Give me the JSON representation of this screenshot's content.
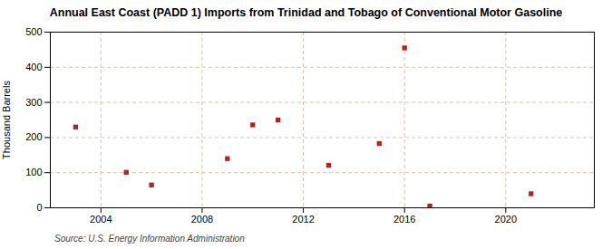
{
  "chart_data": {
    "type": "scatter",
    "title": "Annual East Coast (PADD 1) Imports from Trinidad and Tobago of Conventional Motor Gasoline",
    "ylabel": "Thousand Barrels",
    "source": "Source: U.S. Energy Information Administration",
    "x": [
      2003,
      2005,
      2006,
      2009,
      2010,
      2011,
      2013,
      2015,
      2016,
      2017,
      2021
    ],
    "values": [
      230,
      101,
      65,
      140,
      236,
      250,
      121,
      183,
      455,
      5,
      40
    ],
    "color": "#b22222",
    "marker": "square",
    "xlim": [
      2002.0,
      2023.5
    ],
    "xticks": [
      2004,
      2008,
      2012,
      2016,
      2020
    ],
    "ylim": [
      0,
      500
    ],
    "yticks": [
      0,
      100,
      200,
      300,
      400,
      500
    ],
    "grid": true
  }
}
